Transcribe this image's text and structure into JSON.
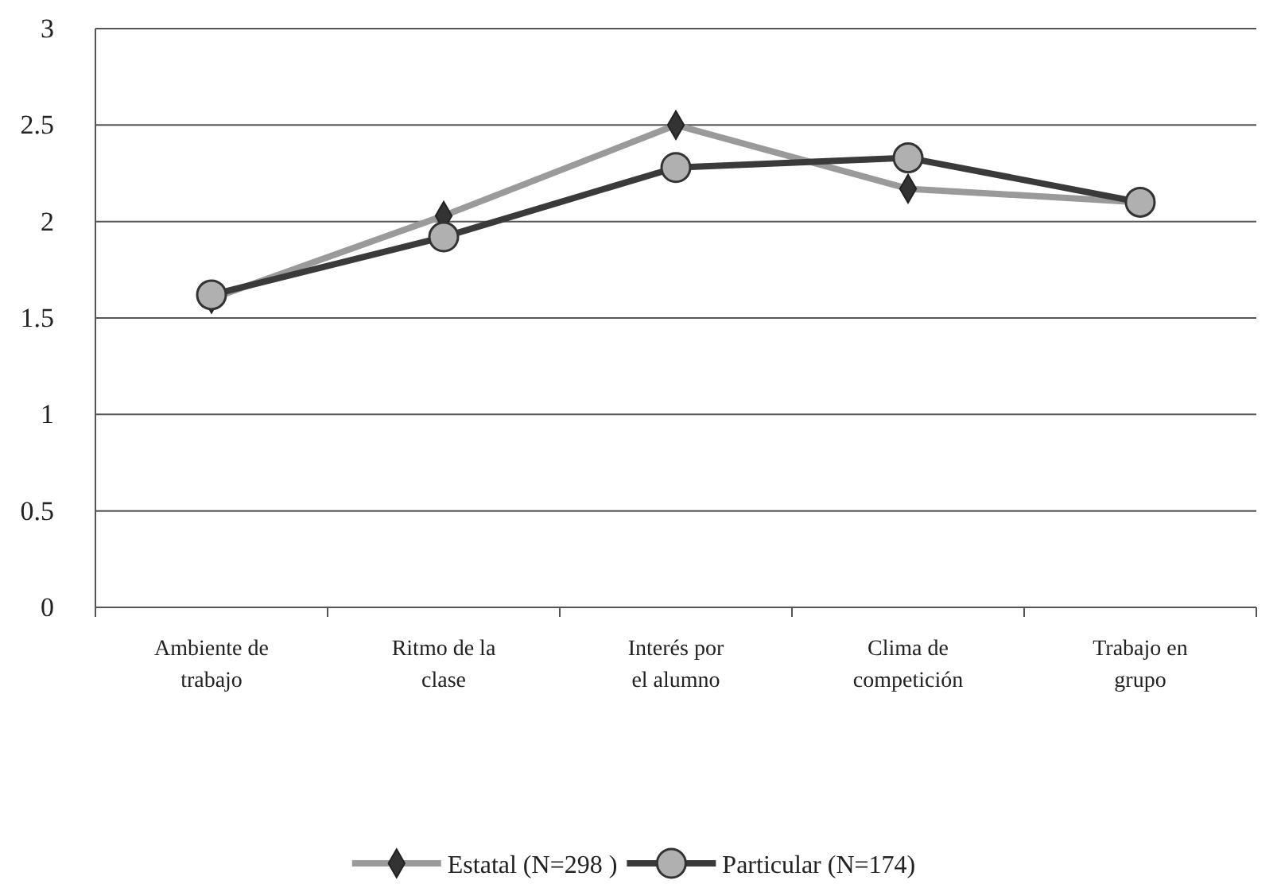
{
  "chart_data": {
    "type": "line",
    "categories": [
      "Ambiente de trabajo",
      "Ritmo de la clase",
      "Interés por el alumno",
      "Clima de competición",
      "Trabajo en grupo"
    ],
    "series": [
      {
        "name": "Estatal  (N=298 )",
        "color": "#9a9a9a",
        "marker": "diamond",
        "values": [
          1.6,
          2.03,
          2.5,
          2.17,
          2.1
        ]
      },
      {
        "name": "Particular (N=174)",
        "color": "#3a3a3a",
        "marker": "circle",
        "values": [
          1.62,
          1.92,
          2.28,
          2.33,
          2.1
        ]
      }
    ],
    "ylim": [
      0,
      3
    ],
    "yticks": [
      0,
      0.5,
      1,
      1.5,
      2,
      2.5,
      3
    ],
    "grid": "y",
    "legend": "bottom"
  }
}
